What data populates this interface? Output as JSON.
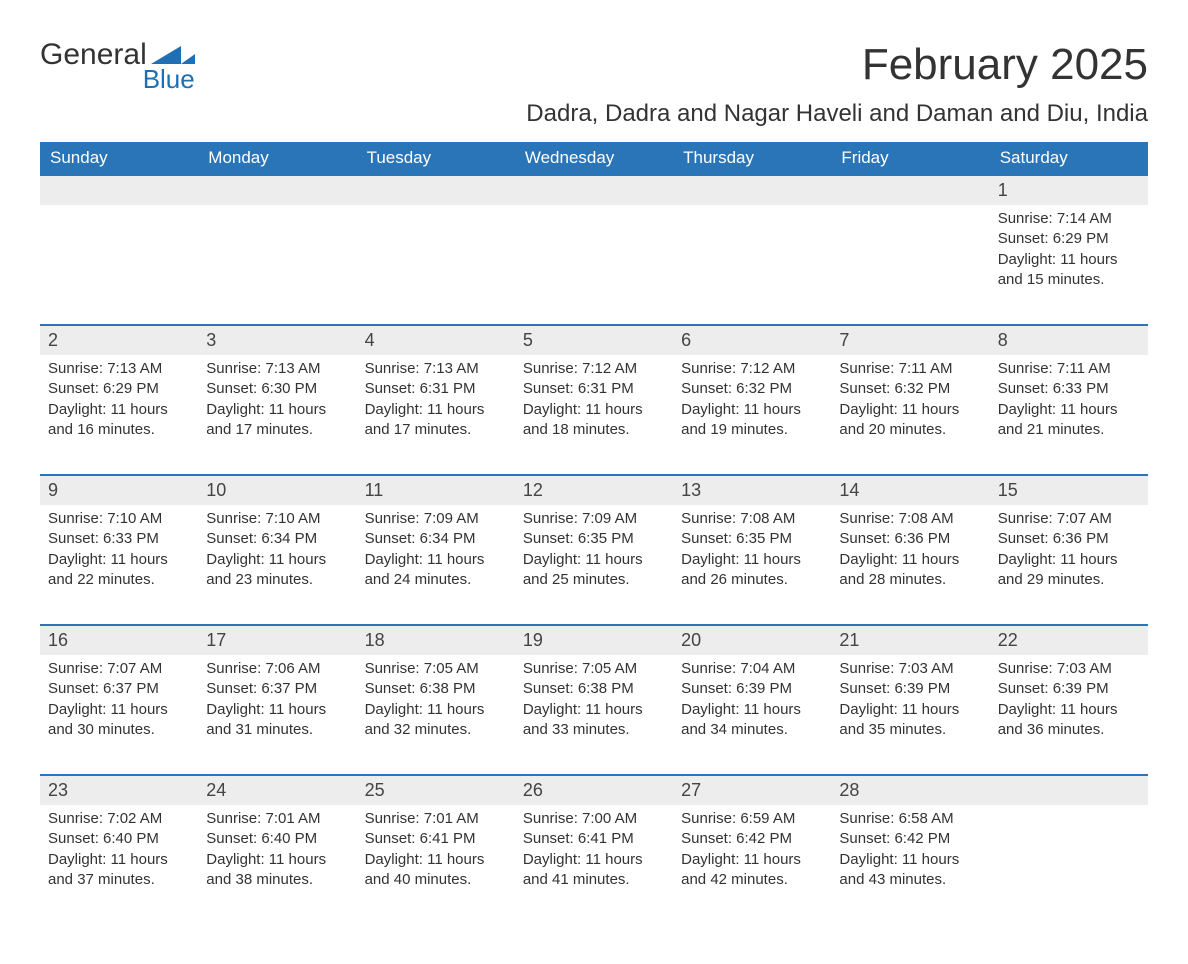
{
  "logo": {
    "text1": "General",
    "text2": "Blue"
  },
  "title": "February 2025",
  "subtitle": "Dadra, Dadra and Nagar Haveli and Daman and Diu, India",
  "colors": {
    "header_bg": "#2a74b8",
    "header_text": "#ffffff",
    "daynum_bg": "#ededed",
    "rule": "#2a74b8",
    "brand_blue": "#1f6fb2",
    "body_text": "#333333"
  },
  "weekdays": [
    "Sunday",
    "Monday",
    "Tuesday",
    "Wednesday",
    "Thursday",
    "Friday",
    "Saturday"
  ],
  "weeks": [
    {
      "days": [
        {
          "num": "",
          "sunrise": "",
          "sunset": "",
          "daylight1": "",
          "daylight2": ""
        },
        {
          "num": "",
          "sunrise": "",
          "sunset": "",
          "daylight1": "",
          "daylight2": ""
        },
        {
          "num": "",
          "sunrise": "",
          "sunset": "",
          "daylight1": "",
          "daylight2": ""
        },
        {
          "num": "",
          "sunrise": "",
          "sunset": "",
          "daylight1": "",
          "daylight2": ""
        },
        {
          "num": "",
          "sunrise": "",
          "sunset": "",
          "daylight1": "",
          "daylight2": ""
        },
        {
          "num": "",
          "sunrise": "",
          "sunset": "",
          "daylight1": "",
          "daylight2": ""
        },
        {
          "num": "1",
          "sunrise": "Sunrise: 7:14 AM",
          "sunset": "Sunset: 6:29 PM",
          "daylight1": "Daylight: 11 hours",
          "daylight2": "and 15 minutes."
        }
      ]
    },
    {
      "days": [
        {
          "num": "2",
          "sunrise": "Sunrise: 7:13 AM",
          "sunset": "Sunset: 6:29 PM",
          "daylight1": "Daylight: 11 hours",
          "daylight2": "and 16 minutes."
        },
        {
          "num": "3",
          "sunrise": "Sunrise: 7:13 AM",
          "sunset": "Sunset: 6:30 PM",
          "daylight1": "Daylight: 11 hours",
          "daylight2": "and 17 minutes."
        },
        {
          "num": "4",
          "sunrise": "Sunrise: 7:13 AM",
          "sunset": "Sunset: 6:31 PM",
          "daylight1": "Daylight: 11 hours",
          "daylight2": "and 17 minutes."
        },
        {
          "num": "5",
          "sunrise": "Sunrise: 7:12 AM",
          "sunset": "Sunset: 6:31 PM",
          "daylight1": "Daylight: 11 hours",
          "daylight2": "and 18 minutes."
        },
        {
          "num": "6",
          "sunrise": "Sunrise: 7:12 AM",
          "sunset": "Sunset: 6:32 PM",
          "daylight1": "Daylight: 11 hours",
          "daylight2": "and 19 minutes."
        },
        {
          "num": "7",
          "sunrise": "Sunrise: 7:11 AM",
          "sunset": "Sunset: 6:32 PM",
          "daylight1": "Daylight: 11 hours",
          "daylight2": "and 20 minutes."
        },
        {
          "num": "8",
          "sunrise": "Sunrise: 7:11 AM",
          "sunset": "Sunset: 6:33 PM",
          "daylight1": "Daylight: 11 hours",
          "daylight2": "and 21 minutes."
        }
      ]
    },
    {
      "days": [
        {
          "num": "9",
          "sunrise": "Sunrise: 7:10 AM",
          "sunset": "Sunset: 6:33 PM",
          "daylight1": "Daylight: 11 hours",
          "daylight2": "and 22 minutes."
        },
        {
          "num": "10",
          "sunrise": "Sunrise: 7:10 AM",
          "sunset": "Sunset: 6:34 PM",
          "daylight1": "Daylight: 11 hours",
          "daylight2": "and 23 minutes."
        },
        {
          "num": "11",
          "sunrise": "Sunrise: 7:09 AM",
          "sunset": "Sunset: 6:34 PM",
          "daylight1": "Daylight: 11 hours",
          "daylight2": "and 24 minutes."
        },
        {
          "num": "12",
          "sunrise": "Sunrise: 7:09 AM",
          "sunset": "Sunset: 6:35 PM",
          "daylight1": "Daylight: 11 hours",
          "daylight2": "and 25 minutes."
        },
        {
          "num": "13",
          "sunrise": "Sunrise: 7:08 AM",
          "sunset": "Sunset: 6:35 PM",
          "daylight1": "Daylight: 11 hours",
          "daylight2": "and 26 minutes."
        },
        {
          "num": "14",
          "sunrise": "Sunrise: 7:08 AM",
          "sunset": "Sunset: 6:36 PM",
          "daylight1": "Daylight: 11 hours",
          "daylight2": "and 28 minutes."
        },
        {
          "num": "15",
          "sunrise": "Sunrise: 7:07 AM",
          "sunset": "Sunset: 6:36 PM",
          "daylight1": "Daylight: 11 hours",
          "daylight2": "and 29 minutes."
        }
      ]
    },
    {
      "days": [
        {
          "num": "16",
          "sunrise": "Sunrise: 7:07 AM",
          "sunset": "Sunset: 6:37 PM",
          "daylight1": "Daylight: 11 hours",
          "daylight2": "and 30 minutes."
        },
        {
          "num": "17",
          "sunrise": "Sunrise: 7:06 AM",
          "sunset": "Sunset: 6:37 PM",
          "daylight1": "Daylight: 11 hours",
          "daylight2": "and 31 minutes."
        },
        {
          "num": "18",
          "sunrise": "Sunrise: 7:05 AM",
          "sunset": "Sunset: 6:38 PM",
          "daylight1": "Daylight: 11 hours",
          "daylight2": "and 32 minutes."
        },
        {
          "num": "19",
          "sunrise": "Sunrise: 7:05 AM",
          "sunset": "Sunset: 6:38 PM",
          "daylight1": "Daylight: 11 hours",
          "daylight2": "and 33 minutes."
        },
        {
          "num": "20",
          "sunrise": "Sunrise: 7:04 AM",
          "sunset": "Sunset: 6:39 PM",
          "daylight1": "Daylight: 11 hours",
          "daylight2": "and 34 minutes."
        },
        {
          "num": "21",
          "sunrise": "Sunrise: 7:03 AM",
          "sunset": "Sunset: 6:39 PM",
          "daylight1": "Daylight: 11 hours",
          "daylight2": "and 35 minutes."
        },
        {
          "num": "22",
          "sunrise": "Sunrise: 7:03 AM",
          "sunset": "Sunset: 6:39 PM",
          "daylight1": "Daylight: 11 hours",
          "daylight2": "and 36 minutes."
        }
      ]
    },
    {
      "days": [
        {
          "num": "23",
          "sunrise": "Sunrise: 7:02 AM",
          "sunset": "Sunset: 6:40 PM",
          "daylight1": "Daylight: 11 hours",
          "daylight2": "and 37 minutes."
        },
        {
          "num": "24",
          "sunrise": "Sunrise: 7:01 AM",
          "sunset": "Sunset: 6:40 PM",
          "daylight1": "Daylight: 11 hours",
          "daylight2": "and 38 minutes."
        },
        {
          "num": "25",
          "sunrise": "Sunrise: 7:01 AM",
          "sunset": "Sunset: 6:41 PM",
          "daylight1": "Daylight: 11 hours",
          "daylight2": "and 40 minutes."
        },
        {
          "num": "26",
          "sunrise": "Sunrise: 7:00 AM",
          "sunset": "Sunset: 6:41 PM",
          "daylight1": "Daylight: 11 hours",
          "daylight2": "and 41 minutes."
        },
        {
          "num": "27",
          "sunrise": "Sunrise: 6:59 AM",
          "sunset": "Sunset: 6:42 PM",
          "daylight1": "Daylight: 11 hours",
          "daylight2": "and 42 minutes."
        },
        {
          "num": "28",
          "sunrise": "Sunrise: 6:58 AM",
          "sunset": "Sunset: 6:42 PM",
          "daylight1": "Daylight: 11 hours",
          "daylight2": "and 43 minutes."
        },
        {
          "num": "",
          "sunrise": "",
          "sunset": "",
          "daylight1": "",
          "daylight2": ""
        }
      ]
    }
  ]
}
